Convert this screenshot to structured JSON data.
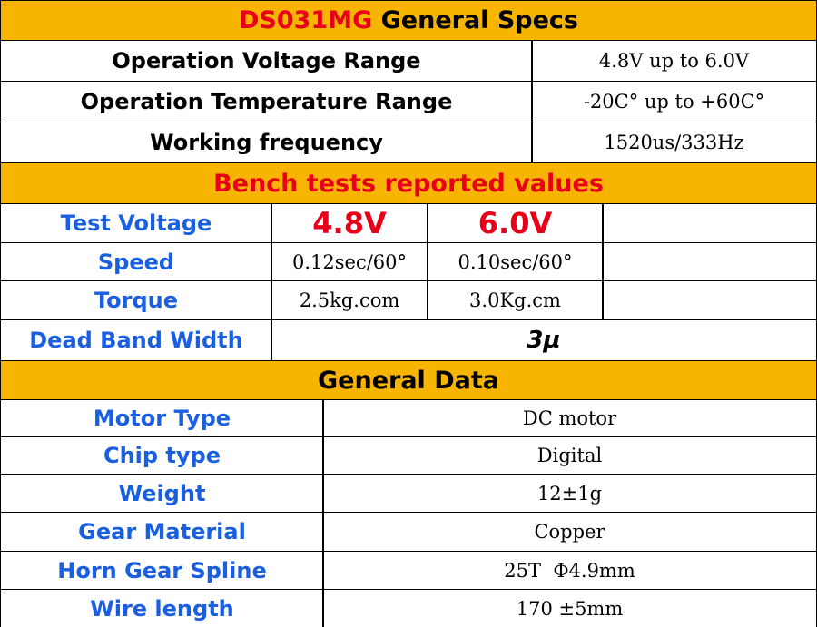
{
  "header": {
    "model": "DS031MG",
    "title": "General Specs"
  },
  "general_specs": {
    "rows": [
      [
        "Operation Voltage Range",
        "4.8V up to 6.0V"
      ],
      [
        "Operation Temperature Range",
        "-20C° up to +60C°"
      ],
      [
        "Working frequency",
        "1520us/333Hz"
      ]
    ]
  },
  "bench_tests": {
    "title": "Bench tests reported values",
    "rows": [
      [
        "Test Voltage",
        "4.8V",
        "6.0V"
      ],
      [
        "Speed",
        "0.12sec/60°",
        "0.10sec/60°"
      ],
      [
        "Torque",
        "2.5kg.com",
        "3.0Kg.cm"
      ]
    ],
    "dead_band": [
      "Dead Band Width",
      "3μ"
    ]
  },
  "general_data": {
    "title": "General Data",
    "rows": [
      [
        "Motor Type",
        "DC motor"
      ],
      [
        "Chip type",
        "Digital"
      ],
      [
        "Weight",
        "12±1g"
      ],
      [
        "Gear Material",
        "Copper"
      ],
      [
        "Horn Gear Spline",
        "25T  Φ4.9mm"
      ],
      [
        "Wire length",
        "170 ±5mm"
      ]
    ]
  }
}
